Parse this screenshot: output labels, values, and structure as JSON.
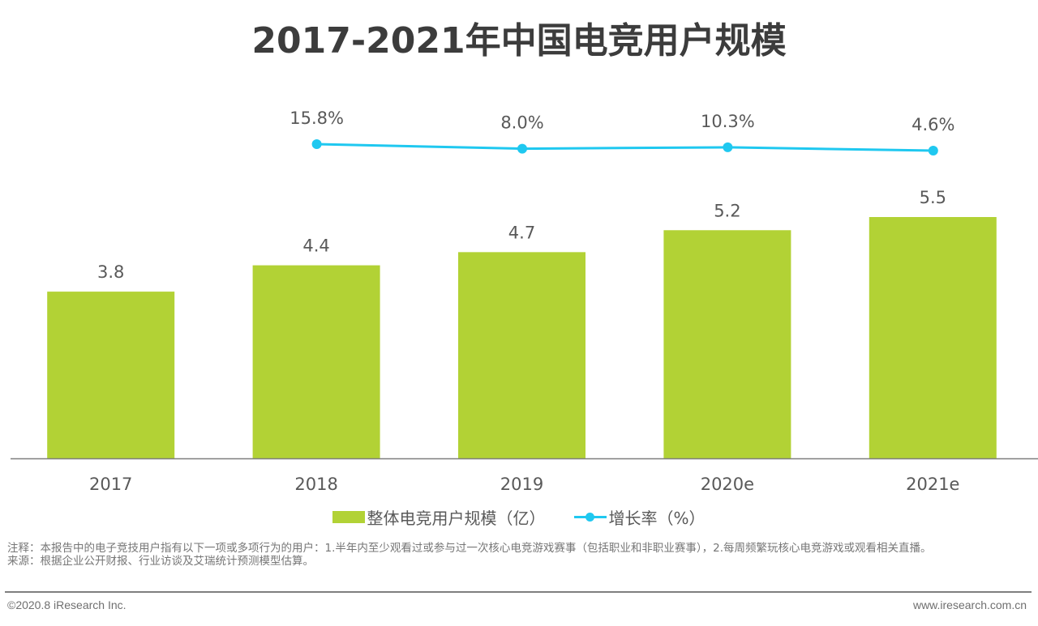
{
  "title": "2017-2021年中国电竞用户规模",
  "chart_data": {
    "type": "bar+line",
    "title": "2017-2021年中国电竞用户规模",
    "categories": [
      "2017",
      "2018",
      "2019",
      "2020e",
      "2021e"
    ],
    "series": [
      {
        "name": "整体电竞用户规模（亿）",
        "type": "bar",
        "values": [
          3.8,
          4.4,
          4.7,
          5.2,
          5.5
        ],
        "labels": [
          "3.8",
          "4.4",
          "4.7",
          "5.2",
          "5.5"
        ],
        "color": "#b2d235"
      },
      {
        "name": "增长率（%）",
        "type": "line",
        "values": [
          null,
          15.8,
          8.0,
          10.3,
          4.6
        ],
        "labels": [
          "",
          "15.8%",
          "8.0%",
          "10.3%",
          "4.6%"
        ],
        "color": "#1fc8f0"
      }
    ],
    "xlabel": "",
    "ylabel": "",
    "ylim": [
      0,
      10.4
    ],
    "grid": false,
    "legend": "bottom-center"
  },
  "legend": {
    "bar_label": "整体电竞用户规模（亿）",
    "line_label": "增长率（%）"
  },
  "notes": {
    "note": "注释：本报告中的电子竞技用户指有以下一项或多项行为的用户：1.半年内至少观看过或参与过一次核心电竞游戏赛事（包括职业和非职业赛事），2.每周频繁玩核心电竞游戏或观看相关直播。",
    "source": "来源：根据企业公开财报、行业访谈及艾瑞统计预测模型估算。"
  },
  "footer": {
    "copyright": "©2020.8 iResearch Inc.",
    "website": "www.iresearch.com.cn"
  }
}
